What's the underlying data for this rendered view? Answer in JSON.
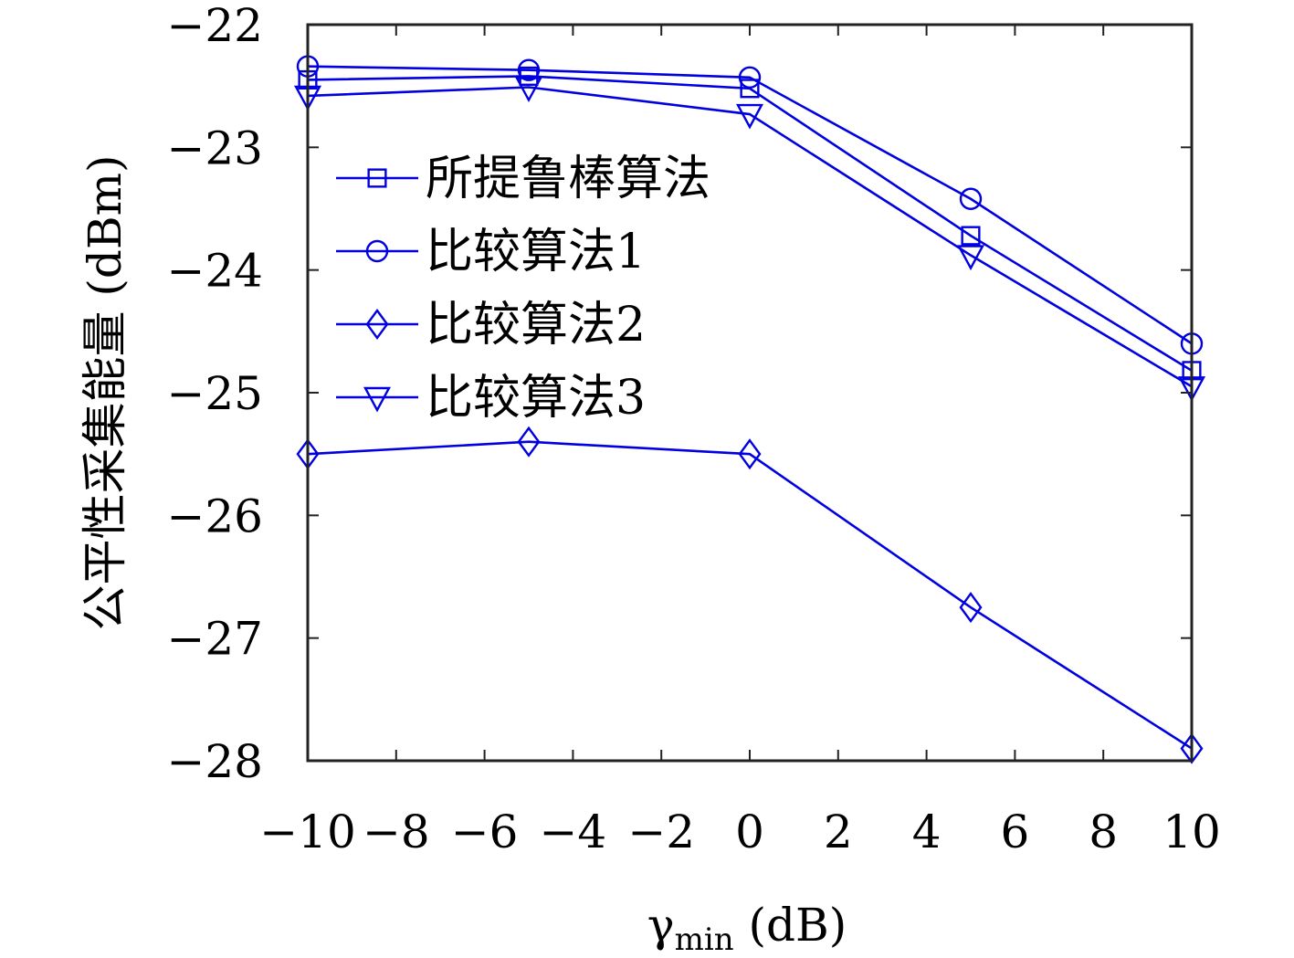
{
  "chart_data": {
    "type": "line",
    "x": [
      -10,
      -5,
      0,
      5,
      10
    ],
    "xlim": [
      -10,
      10
    ],
    "ylim": [
      -28,
      -22
    ],
    "xticks": [
      -10,
      -8,
      -6,
      -4,
      -2,
      0,
      2,
      4,
      6,
      8,
      10
    ],
    "xtick_labels": [
      "−10",
      "−8",
      "−6",
      "−4",
      "−2",
      "0",
      "2",
      "4",
      "6",
      "8",
      "10"
    ],
    "yticks": [
      -22,
      -23,
      -24,
      -25,
      -26,
      -27,
      -28
    ],
    "ytick_labels": [
      "−22",
      "−23",
      "−24",
      "−25",
      "−26",
      "−27",
      "−28"
    ],
    "xlabel_main": "γ",
    "xlabel_sub": "min",
    "xlabel_unit": " (dB)",
    "ylabel": "公平性采集能量 (dBm)",
    "legend_position": "upper-left",
    "grid": false,
    "line_color": "#0000e0",
    "series": [
      {
        "name": "所提鲁棒算法",
        "marker": "square",
        "values": [
          -22.45,
          -22.42,
          -22.52,
          -23.72,
          -24.82
        ]
      },
      {
        "name": "比较算法1",
        "marker": "circle",
        "values": [
          -22.34,
          -22.37,
          -22.43,
          -23.42,
          -24.6
        ]
      },
      {
        "name": "比较算法2",
        "marker": "diamond",
        "values": [
          -25.5,
          -25.4,
          -25.5,
          -26.75,
          -27.9
        ]
      },
      {
        "name": "比较算法3",
        "marker": "triangle-down",
        "values": [
          -22.58,
          -22.51,
          -22.73,
          -23.88,
          -24.95
        ]
      }
    ]
  }
}
